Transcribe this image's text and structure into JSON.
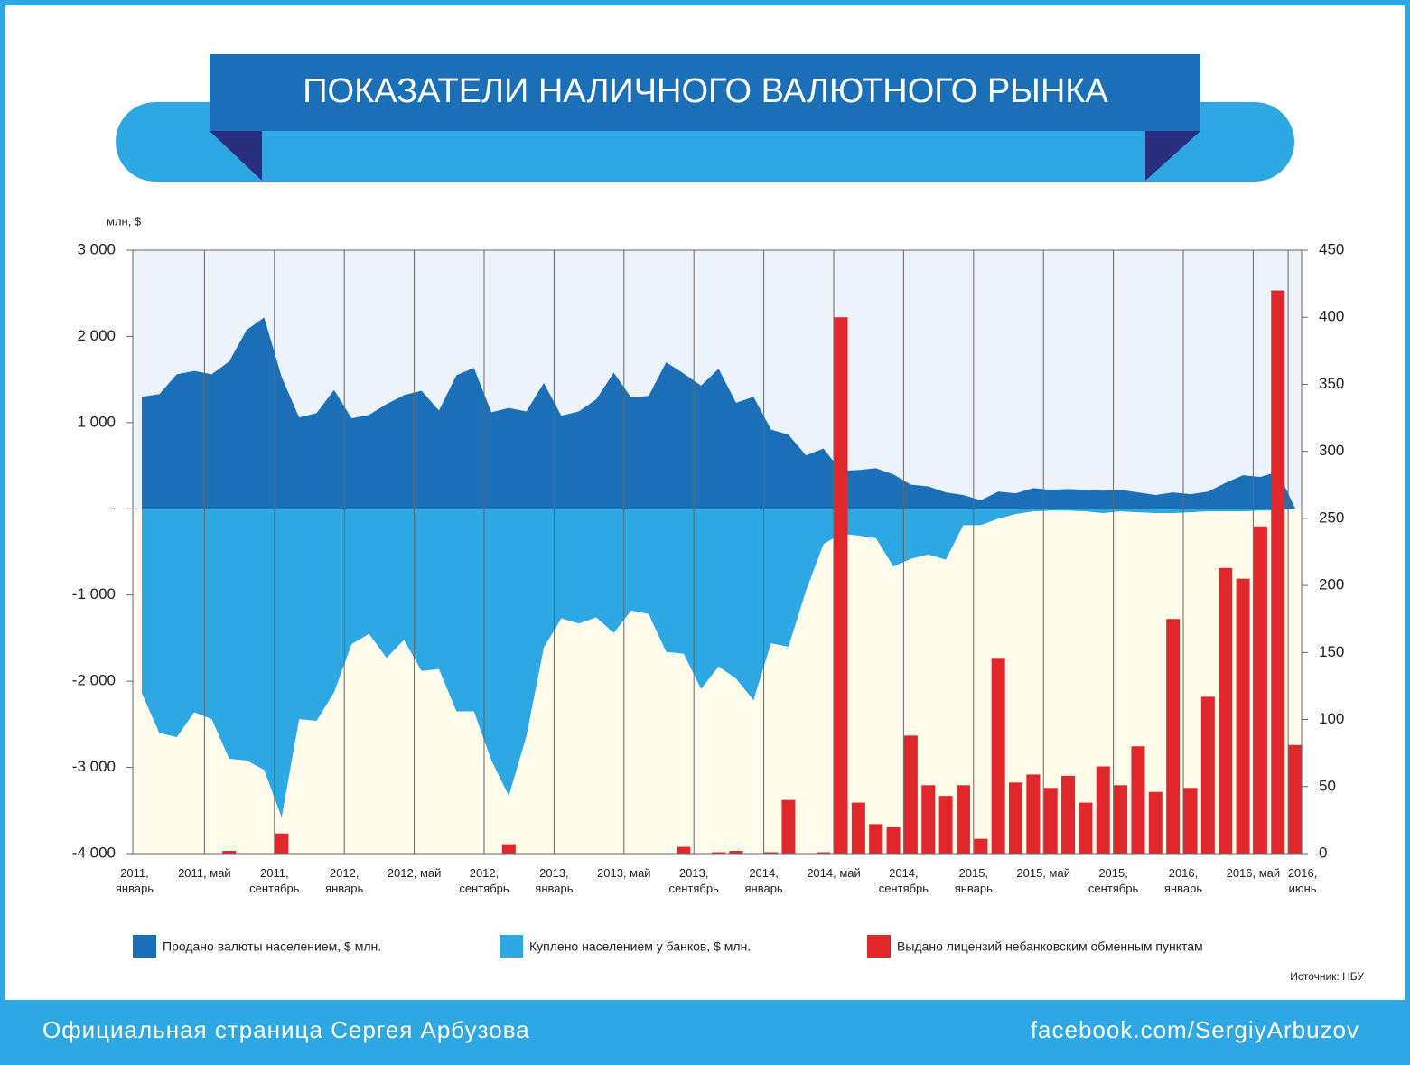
{
  "header": {
    "title": "ПОКАЗАТЕЛИ НАЛИЧНОГО ВАЛЮТНОГО РЫНКА"
  },
  "chart_data": {
    "type": "combo",
    "y_unit": "млн, $",
    "source": "Источник: НБУ",
    "categories": [
      "2011, январь",
      null,
      null,
      null,
      "2011, май",
      null,
      null,
      null,
      "2011, сентябрь",
      null,
      null,
      null,
      "2012, январь",
      null,
      null,
      null,
      "2012, май",
      null,
      null,
      null,
      "2012, сентябрь",
      null,
      null,
      null,
      "2013, январь",
      null,
      null,
      null,
      "2013, май",
      null,
      null,
      null,
      "2013, сентябрь",
      null,
      null,
      null,
      "2014, январь",
      null,
      null,
      null,
      "2014, май",
      null,
      null,
      null,
      "2014, сентябрь",
      null,
      null,
      null,
      "2015, январь",
      null,
      null,
      null,
      "2015, май",
      null,
      null,
      null,
      "2015, сентябрь",
      null,
      null,
      null,
      "2016, январь",
      null,
      null,
      null,
      "2016, май",
      null,
      "2016, июнь"
    ],
    "ylim": [
      -4000,
      3000
    ],
    "yticks": [
      {
        "value": 3000,
        "label": "3 000"
      },
      {
        "value": 2000,
        "label": "2 000"
      },
      {
        "value": 1000,
        "label": "1 000"
      },
      {
        "value": 0,
        "label": "-"
      },
      {
        "value": -1000,
        "label": "-1 000"
      },
      {
        "value": -2000,
        "label": "-2 000"
      },
      {
        "value": -3000,
        "label": "-3 000"
      },
      {
        "value": -4000,
        "label": "-4 000"
      }
    ],
    "y2lim": [
      0,
      450
    ],
    "y2ticks": [
      0,
      50,
      100,
      150,
      200,
      250,
      300,
      350,
      400,
      450
    ],
    "series": [
      {
        "name": "Продано валюты населением, $ млн.",
        "type": "area",
        "color": "#1a6fb6",
        "values": [
          1300,
          1330,
          1560,
          1600,
          1560,
          1710,
          2075,
          2220,
          1530,
          1060,
          1110,
          1380,
          1050,
          1090,
          1215,
          1320,
          1370,
          1140,
          1550,
          1635,
          1120,
          1170,
          1130,
          1460,
          1080,
          1130,
          1270,
          1580,
          1290,
          1310,
          1700,
          1570,
          1430,
          1625,
          1230,
          1300,
          920,
          860,
          620,
          700,
          440,
          450,
          470,
          400,
          280,
          260,
          190,
          160,
          100,
          200,
          180,
          240,
          220,
          230,
          220,
          210,
          220,
          190,
          160,
          190,
          170,
          200,
          300,
          390,
          370,
          430,
          0
        ]
      },
      {
        "name": "Куплено населением у банков, $ млн.",
        "type": "area",
        "color": "#2ea8e2",
        "values": [
          -2140,
          -2600,
          -2650,
          -2360,
          -2440,
          -2900,
          -2920,
          -3030,
          -3580,
          -2440,
          -2460,
          -2130,
          -1570,
          -1450,
          -1730,
          -1520,
          -1880,
          -1860,
          -2350,
          -2350,
          -2920,
          -3330,
          -2640,
          -1610,
          -1270,
          -1330,
          -1260,
          -1440,
          -1180,
          -1220,
          -1660,
          -1680,
          -2090,
          -1830,
          -1970,
          -2220,
          -1560,
          -1600,
          -950,
          -410,
          -290,
          -310,
          -340,
          -670,
          -580,
          -530,
          -590,
          -190,
          -190,
          -115,
          -60,
          -30,
          -20,
          -20,
          -30,
          -50,
          -30,
          -40,
          -50,
          -50,
          -40,
          -30,
          -30,
          -30,
          -20,
          -20,
          0
        ]
      },
      {
        "name": "Выдано лицензий небанковским обменным пунктам",
        "type": "bar",
        "axis": "y2",
        "color": "#e0282c",
        "values": [
          0,
          0,
          0,
          0,
          0,
          2,
          0,
          0,
          15,
          0,
          0,
          0,
          0,
          0,
          0,
          0,
          0,
          0,
          0,
          0,
          0,
          7,
          0,
          0,
          0,
          0,
          0,
          0,
          0,
          0,
          0,
          5,
          0,
          1,
          2,
          0,
          1,
          40,
          0,
          1,
          400,
          38,
          22,
          20,
          88,
          51,
          43,
          51,
          11,
          146,
          53,
          59,
          49,
          58,
          38,
          65,
          51,
          80,
          46,
          175,
          49,
          117,
          213,
          205,
          244,
          420,
          81
        ]
      }
    ]
  },
  "footer": {
    "left": "Официальная страница Сергея Арбузова",
    "right": "facebook.com/SergiyArbuzov"
  }
}
